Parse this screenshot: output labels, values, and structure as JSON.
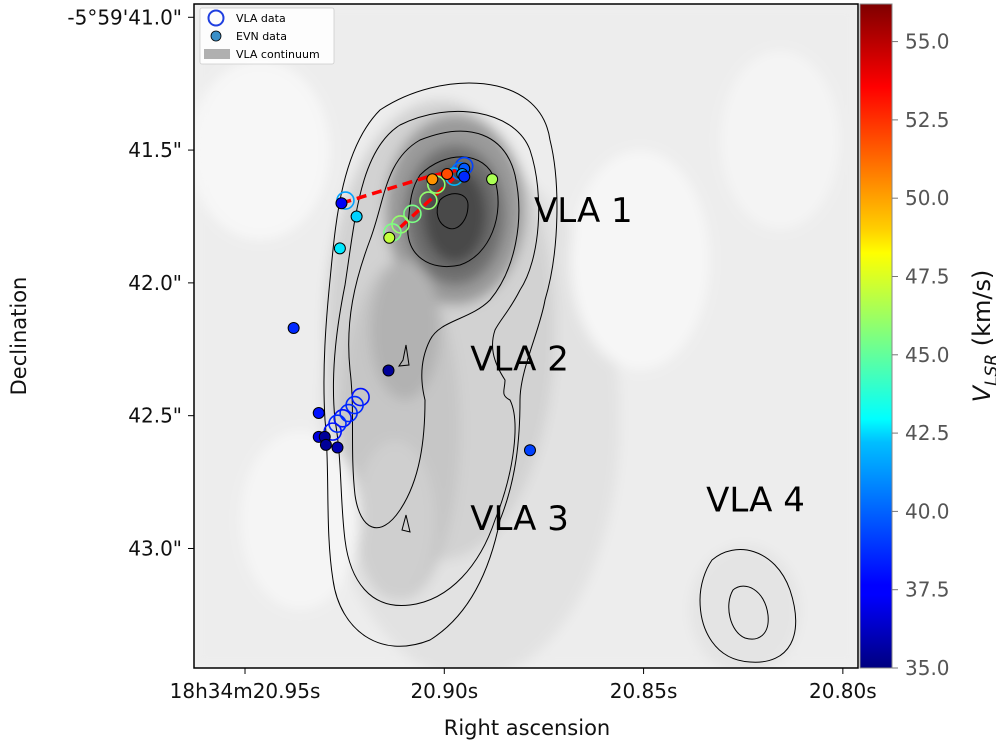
{
  "chart_data": {
    "type": "scatter",
    "xlabel": "Right ascension",
    "ylabel": "Declination",
    "x_tick_labels": [
      {
        "ra_s": 20.95,
        "label": "18h34m20.95s"
      },
      {
        "ra_s": 20.9,
        "label": "20.90s"
      },
      {
        "ra_s": 20.85,
        "label": "20.85s"
      },
      {
        "ra_s": 20.8,
        "label": "20.80s"
      }
    ],
    "y_tick_labels": [
      {
        "dec": 41.0,
        "label": "-5°59'41.0\""
      },
      {
        "dec": 41.5,
        "label": "41.5\""
      },
      {
        "dec": 42.0,
        "label": "42.0\""
      },
      {
        "dec": 42.5,
        "label": "42.5\""
      },
      {
        "dec": 43.0,
        "label": "43.0\""
      }
    ],
    "xlim": [
      20.9628,
      20.7962
    ],
    "ylim": [
      40.95,
      43.45
    ],
    "colorbar": {
      "label_main": "V",
      "label_sub": "LSR",
      "label_rest": " (km/s)",
      "range": [
        35.0,
        56.2
      ],
      "ticks": [
        "35.0",
        "37.5",
        "40.0",
        "42.5",
        "45.0",
        "47.5",
        "50.0",
        "52.5",
        "55.0"
      ],
      "cmap": "jet"
    },
    "legend": {
      "placement": "upper-left",
      "entries": [
        {
          "label": "VLA data",
          "marker": "open-circle",
          "color": "#1f3fe0"
        },
        {
          "label": "EVN data",
          "marker": "filled-circle",
          "color": "#3a8fc8"
        },
        {
          "label": "VLA continuum",
          "marker": "gray-patch",
          "color": "#b0b0b0"
        }
      ]
    },
    "annotations": [
      {
        "text": "VLA 1",
        "ra": 20.8775,
        "dec": 41.77
      },
      {
        "text": "VLA 2",
        "ra": 20.8935,
        "dec": 42.33
      },
      {
        "text": "VLA 3",
        "ra": 20.8935,
        "dec": 42.93
      },
      {
        "text": "VLA 4",
        "ra": 20.8343,
        "dec": 42.86
      }
    ],
    "evn_data": [
      {
        "ra": 20.9258,
        "dec": 41.7,
        "v": 37.5
      },
      {
        "ra": 20.922,
        "dec": 41.75,
        "v": 42.0
      },
      {
        "ra": 20.9262,
        "dec": 41.87,
        "v": 42.5
      },
      {
        "ra": 20.9138,
        "dec": 41.83,
        "v": 47.0
      },
      {
        "ra": 20.903,
        "dec": 41.61,
        "v": 50.5
      },
      {
        "ra": 20.8993,
        "dec": 41.59,
        "v": 52.0
      },
      {
        "ra": 20.895,
        "dec": 41.57,
        "v": 39.5
      },
      {
        "ra": 20.8955,
        "dec": 41.59,
        "v": 41.0
      },
      {
        "ra": 20.895,
        "dec": 41.6,
        "v": 38.5
      },
      {
        "ra": 20.888,
        "dec": 41.61,
        "v": 46.5
      },
      {
        "ra": 20.9378,
        "dec": 42.17,
        "v": 38.5
      },
      {
        "ra": 20.914,
        "dec": 42.33,
        "v": 35.5
      },
      {
        "ra": 20.9315,
        "dec": 42.49,
        "v": 38.0
      },
      {
        "ra": 20.9315,
        "dec": 42.58,
        "v": 37.0
      },
      {
        "ra": 20.93,
        "dec": 42.58,
        "v": 35.5
      },
      {
        "ra": 20.9297,
        "dec": 42.61,
        "v": 35.5
      },
      {
        "ra": 20.9268,
        "dec": 42.62,
        "v": 36.0
      },
      {
        "ra": 20.8785,
        "dec": 42.63,
        "v": 39.0
      }
    ],
    "vla_data": [
      {
        "ra": 20.895,
        "dec": 41.56,
        "v": 39.0
      },
      {
        "ra": 20.896,
        "dec": 41.58,
        "v": 40.0
      },
      {
        "ra": 20.8975,
        "dec": 41.6,
        "v": 41.5
      },
      {
        "ra": 20.902,
        "dec": 41.63,
        "v": 46.0
      },
      {
        "ra": 20.904,
        "dec": 41.69,
        "v": 46.0
      },
      {
        "ra": 20.908,
        "dec": 41.74,
        "v": 45.5
      },
      {
        "ra": 20.911,
        "dec": 41.78,
        "v": 46.0
      },
      {
        "ra": 20.913,
        "dec": 41.81,
        "v": 45.5
      },
      {
        "ra": 20.9248,
        "dec": 41.69,
        "v": 41.0
      },
      {
        "ra": 20.921,
        "dec": 42.43,
        "v": 38.0
      },
      {
        "ra": 20.9225,
        "dec": 42.46,
        "v": 38.5
      },
      {
        "ra": 20.924,
        "dec": 42.49,
        "v": 38.5
      },
      {
        "ra": 20.9255,
        "dec": 42.51,
        "v": 38.0
      },
      {
        "ra": 20.9268,
        "dec": 42.53,
        "v": 38.5
      },
      {
        "ra": 20.928,
        "dec": 42.56,
        "v": 38.0
      }
    ],
    "dashed_path": [
      {
        "ra": 20.9258,
        "dec": 41.7
      },
      {
        "ra": 20.904,
        "dec": 41.6
      },
      {
        "ra": 20.895,
        "dec": 41.57
      }
    ],
    "dashed_path_2": [
      {
        "ra": 20.911,
        "dec": 41.79
      },
      {
        "ra": 20.895,
        "dec": 41.57
      }
    ]
  }
}
